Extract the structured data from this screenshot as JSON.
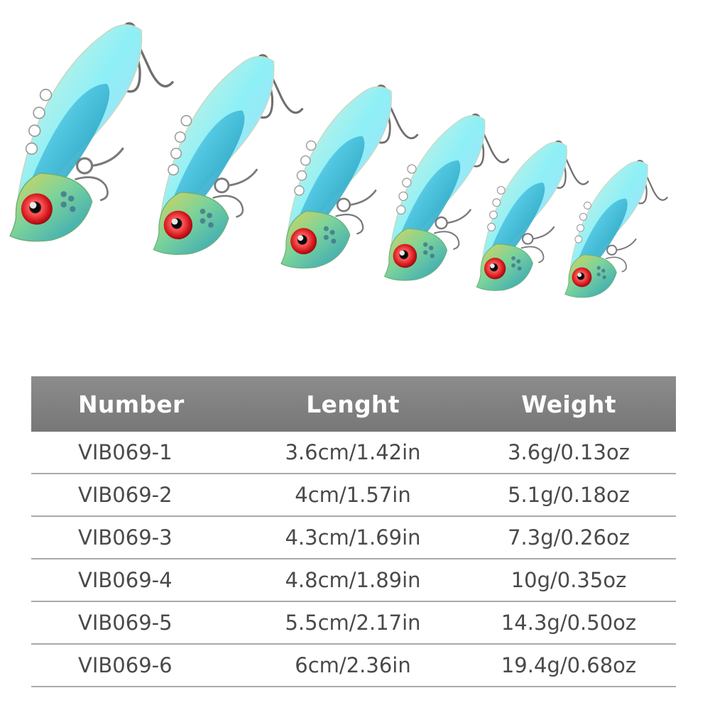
{
  "colors": {
    "header_bg": "#808080",
    "header_text": "#ffffff",
    "cell_text": "#4a4a4a",
    "row_divider": "#a9a9a9"
  },
  "product_image": {
    "lure_count": 6
  },
  "table": {
    "headers": [
      "Number",
      "Lenght",
      "Weight"
    ],
    "rows": [
      {
        "number": "VIB069-1",
        "length": "3.6cm/1.42in",
        "weight": "3.6g/0.13oz"
      },
      {
        "number": "VIB069-2",
        "length": "4cm/1.57in",
        "weight": "5.1g/0.18oz"
      },
      {
        "number": "VIB069-3",
        "length": "4.3cm/1.69in",
        "weight": "7.3g/0.26oz"
      },
      {
        "number": "VIB069-4",
        "length": "4.8cm/1.89in",
        "weight": "10g/0.35oz"
      },
      {
        "number": "VIB069-5",
        "length": "5.5cm/2.17in",
        "weight": "14.3g/0.50oz"
      },
      {
        "number": "VIB069-6",
        "length": "6cm/2.36in",
        "weight": "19.4g/0.68oz"
      }
    ]
  }
}
